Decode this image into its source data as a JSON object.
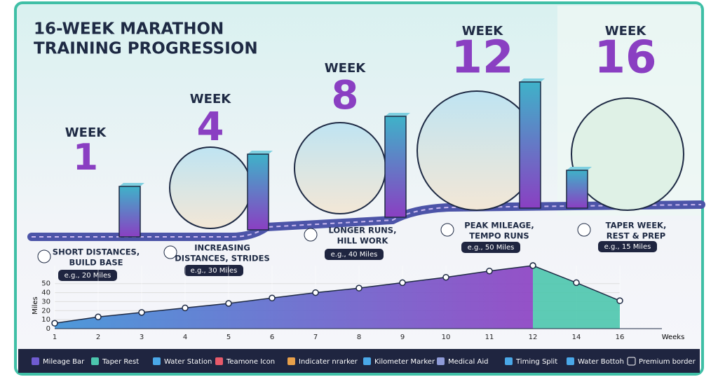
{
  "header": {
    "title_lines": [
      "16-WEEK MARATHON",
      "TRAINING PROGRESSION"
    ]
  },
  "stages": [
    {
      "week_label": "WEEK",
      "week": 1,
      "lines": [
        "SHORT DISTANCES,",
        "BUILD BASE"
      ],
      "miles": 20,
      "miles_label": "e.g., 20 Miles"
    },
    {
      "week_label": "WEEK",
      "week": 4,
      "lines": [
        "INCREASING",
        "DISTANCES, STRIDES"
      ],
      "miles": 30,
      "miles_label": "e.g., 30 Miles"
    },
    {
      "week_label": "WEEK",
      "week": 8,
      "lines": [
        "LONGER RUNS,",
        "HILL WORK"
      ],
      "miles": 40,
      "miles_label": "e.g., 40 Miles"
    },
    {
      "week_label": "WEEK",
      "week": 12,
      "lines": [
        "PEAK MILEAGE,",
        "TEMPO RUNS"
      ],
      "miles": 50,
      "miles_label": "e.g., 50 Miles"
    },
    {
      "week_label": "WEEK",
      "week": 16,
      "lines": [
        "TAPER WEEK,",
        "REST & PREP"
      ],
      "miles": 15,
      "miles_label": "e.g., 15 Miles"
    }
  ],
  "chart_data": {
    "type": "area",
    "x_label": "Weeks",
    "y_label": "Miles",
    "categories": [
      1,
      2,
      3,
      4,
      5,
      6,
      7,
      8,
      9,
      10,
      11,
      12,
      14,
      16
    ],
    "series": [
      {
        "color": "#7a4fd0",
        "values": [
          6,
          13,
          18,
          23,
          28,
          34,
          40,
          45,
          51,
          57,
          64,
          70,
          null,
          null
        ]
      },
      {
        "color": "#4cc6ad",
        "values": [
          null,
          null,
          null,
          null,
          null,
          null,
          null,
          null,
          null,
          null,
          null,
          70,
          51,
          31
        ]
      }
    ],
    "ylim": [
      0,
      70
    ],
    "yticks": [
      0,
      10,
      20,
      30,
      40,
      50
    ],
    "grid": true
  },
  "legend": {
    "items": [
      "Mileage Bar",
      "Taper Rest",
      "Water Station",
      "Teamone Icon",
      "Indicater nrarker",
      "Kilometer Marker",
      "Medical Aid",
      "Timing Split",
      "Water Bottoh",
      "Premium border"
    ]
  }
}
